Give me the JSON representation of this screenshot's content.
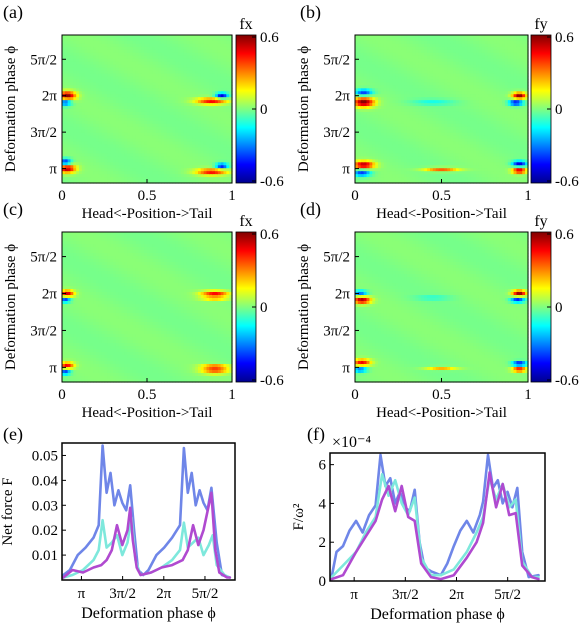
{
  "chart_data": [
    {
      "panel": "(a)",
      "type": "heatmap",
      "xlabel": "Head<-Position->Tail",
      "ylabel": "Deformation phase ϕ",
      "colorbar_label": "fx",
      "colorbar_ticks": [
        "0.6",
        "0",
        "-0.6"
      ],
      "clim": [
        -0.6,
        0.6
      ],
      "xticks": [
        "0",
        "0.5",
        "1"
      ],
      "yticks": [
        "π",
        "3π/2",
        "2π",
        "5π/2"
      ],
      "xlim": [
        0,
        1
      ],
      "ylim": [
        2.52,
        8.9
      ],
      "blobs": [
        {
          "x": 0.03,
          "y": 6.28,
          "v": 0.6,
          "sx": 0.05,
          "sy": 0.18
        },
        {
          "x": 0.02,
          "y": 6.0,
          "v": -0.4,
          "sx": 0.035,
          "sy": 0.15
        },
        {
          "x": 0.03,
          "y": 3.14,
          "v": 0.55,
          "sx": 0.05,
          "sy": 0.18
        },
        {
          "x": 0.02,
          "y": 3.42,
          "v": -0.45,
          "sx": 0.035,
          "sy": 0.15
        },
        {
          "x": 0.94,
          "y": 6.28,
          "v": -0.5,
          "sx": 0.035,
          "sy": 0.12
        },
        {
          "x": 0.88,
          "y": 6.05,
          "v": 0.45,
          "sx": 0.09,
          "sy": 0.13
        },
        {
          "x": 0.94,
          "y": 3.25,
          "v": -0.45,
          "sx": 0.035,
          "sy": 0.12
        },
        {
          "x": 0.88,
          "y": 3.0,
          "v": 0.45,
          "sx": 0.09,
          "sy": 0.13
        }
      ]
    },
    {
      "panel": "(b)",
      "type": "heatmap",
      "xlabel": "Head<-Position->Tail",
      "ylabel": "Deformation phase ϕ",
      "colorbar_label": "fy",
      "colorbar_ticks": [
        "0.6",
        "0",
        "-0.6"
      ],
      "clim": [
        -0.6,
        0.6
      ],
      "xticks": [
        "0",
        "0.5",
        "1"
      ],
      "yticks": [
        "π",
        "3π/2",
        "2π",
        "5π/2"
      ],
      "xlim": [
        0,
        1
      ],
      "ylim": [
        2.52,
        8.9
      ],
      "blobs": [
        {
          "x": 0.05,
          "y": 6.0,
          "v": 0.6,
          "sx": 0.06,
          "sy": 0.2
        },
        {
          "x": 0.05,
          "y": 6.42,
          "v": -0.4,
          "sx": 0.05,
          "sy": 0.14
        },
        {
          "x": 0.05,
          "y": 3.3,
          "v": 0.55,
          "sx": 0.06,
          "sy": 0.16
        },
        {
          "x": 0.04,
          "y": 2.95,
          "v": -0.4,
          "sx": 0.05,
          "sy": 0.14
        },
        {
          "x": 0.5,
          "y": 3.1,
          "v": 0.35,
          "sx": 0.1,
          "sy": 0.08
        },
        {
          "x": 0.45,
          "y": 6.0,
          "v": -0.12,
          "sx": 0.12,
          "sy": 0.12
        },
        {
          "x": 0.95,
          "y": 6.28,
          "v": 0.6,
          "sx": 0.04,
          "sy": 0.14
        },
        {
          "x": 0.93,
          "y": 5.98,
          "v": -0.5,
          "sx": 0.04,
          "sy": 0.12
        },
        {
          "x": 0.95,
          "y": 3.35,
          "v": -0.5,
          "sx": 0.04,
          "sy": 0.12
        },
        {
          "x": 0.95,
          "y": 3.05,
          "v": 0.55,
          "sx": 0.04,
          "sy": 0.12
        }
      ]
    },
    {
      "panel": "(c)",
      "type": "heatmap",
      "xlabel": "Head<-Position->Tail",
      "ylabel": "Deformation phase ϕ",
      "colorbar_label": "fx",
      "colorbar_ticks": [
        "0.6",
        "0",
        "-0.6"
      ],
      "clim": [
        -0.6,
        0.6
      ],
      "xticks": [
        "0",
        "0.5",
        "1"
      ],
      "yticks": [
        "π",
        "3π/2",
        "2π",
        "5π/2"
      ],
      "xlim": [
        0,
        1
      ],
      "ylim": [
        2.52,
        8.9
      ],
      "blobs": [
        {
          "x": 0.03,
          "y": 6.28,
          "v": 0.5,
          "sx": 0.04,
          "sy": 0.14
        },
        {
          "x": 0.02,
          "y": 6.02,
          "v": -0.4,
          "sx": 0.03,
          "sy": 0.12
        },
        {
          "x": 0.03,
          "y": 3.22,
          "v": 0.45,
          "sx": 0.04,
          "sy": 0.14
        },
        {
          "x": 0.02,
          "y": 2.95,
          "v": -0.4,
          "sx": 0.03,
          "sy": 0.12
        },
        {
          "x": 0.9,
          "y": 6.3,
          "v": 0.45,
          "sx": 0.08,
          "sy": 0.1
        },
        {
          "x": 0.9,
          "y": 6.1,
          "v": 0.3,
          "sx": 0.08,
          "sy": 0.1
        },
        {
          "x": 0.9,
          "y": 3.15,
          "v": 0.45,
          "sx": 0.08,
          "sy": 0.1
        },
        {
          "x": 0.9,
          "y": 2.95,
          "v": 0.3,
          "sx": 0.08,
          "sy": 0.1
        }
      ]
    },
    {
      "panel": "(d)",
      "type": "heatmap",
      "xlabel": "Head<-Position->Tail",
      "ylabel": "Deformation phase ϕ",
      "colorbar_label": "fy",
      "colorbar_ticks": [
        "0.6",
        "0",
        "-0.6"
      ],
      "clim": [
        -0.6,
        0.6
      ],
      "xticks": [
        "0",
        "0.5",
        "1"
      ],
      "yticks": [
        "π",
        "3π/2",
        "2π",
        "5π/2"
      ],
      "xlim": [
        0,
        1
      ],
      "ylim": [
        2.52,
        8.9
      ],
      "blobs": [
        {
          "x": 0.04,
          "y": 6.0,
          "v": 0.55,
          "sx": 0.05,
          "sy": 0.15
        },
        {
          "x": 0.03,
          "y": 6.3,
          "v": -0.35,
          "sx": 0.04,
          "sy": 0.12
        },
        {
          "x": 0.04,
          "y": 3.35,
          "v": 0.45,
          "sx": 0.05,
          "sy": 0.14
        },
        {
          "x": 0.03,
          "y": 3.05,
          "v": -0.35,
          "sx": 0.04,
          "sy": 0.12
        },
        {
          "x": 0.5,
          "y": 3.1,
          "v": 0.25,
          "sx": 0.09,
          "sy": 0.07
        },
        {
          "x": 0.45,
          "y": 6.1,
          "v": -0.1,
          "sx": 0.1,
          "sy": 0.1
        },
        {
          "x": 0.95,
          "y": 6.3,
          "v": 0.6,
          "sx": 0.04,
          "sy": 0.12
        },
        {
          "x": 0.94,
          "y": 6.0,
          "v": -0.45,
          "sx": 0.04,
          "sy": 0.1
        },
        {
          "x": 0.95,
          "y": 3.3,
          "v": -0.5,
          "sx": 0.04,
          "sy": 0.1
        },
        {
          "x": 0.95,
          "y": 3.05,
          "v": 0.5,
          "sx": 0.04,
          "sy": 0.1
        }
      ]
    },
    {
      "panel": "(e)",
      "type": "line",
      "xlabel": "Deformation phase ϕ",
      "ylabel": "Net force F",
      "xlim": [
        2.4,
        9.0
      ],
      "ylim": [
        0,
        0.055
      ],
      "xticks": [
        {
          "v": 3.1416,
          "label": "π"
        },
        {
          "v": 4.7124,
          "label": "3π/2"
        },
        {
          "v": 6.2832,
          "label": "2π"
        },
        {
          "v": 7.854,
          "label": "5π/2"
        }
      ],
      "yticks": [
        "0.01",
        "0.02",
        "0.03",
        "0.04",
        "0.05"
      ],
      "series": [
        {
          "color": "#6f86e8",
          "x": [
            2.45,
            2.7,
            3.0,
            3.3,
            3.6,
            3.8,
            3.95,
            4.1,
            4.25,
            4.4,
            4.55,
            4.7,
            4.85,
            5.0,
            5.15,
            5.3,
            5.5,
            5.7,
            6.0,
            6.3,
            6.6,
            6.9,
            7.05,
            7.2,
            7.35,
            7.5,
            7.65,
            7.8,
            7.95,
            8.1,
            8.3,
            8.5,
            8.8
          ],
          "y": [
            0.002,
            0.004,
            0.01,
            0.013,
            0.017,
            0.022,
            0.054,
            0.035,
            0.043,
            0.03,
            0.036,
            0.031,
            0.028,
            0.038,
            0.02,
            0.004,
            0.002,
            0.004,
            0.01,
            0.013,
            0.017,
            0.022,
            0.053,
            0.035,
            0.043,
            0.03,
            0.036,
            0.031,
            0.028,
            0.037,
            0.015,
            0.002,
            0.001
          ]
        },
        {
          "color": "#7ee8dc",
          "x": [
            2.45,
            2.8,
            3.2,
            3.6,
            3.8,
            3.95,
            4.1,
            4.3,
            4.5,
            4.7,
            4.9,
            5.05,
            5.2,
            5.4,
            5.8,
            6.2,
            6.6,
            6.9,
            7.05,
            7.2,
            7.4,
            7.6,
            7.8,
            8.0,
            8.15,
            8.3,
            8.6,
            8.8
          ],
          "y": [
            0.001,
            0.002,
            0.004,
            0.008,
            0.012,
            0.024,
            0.013,
            0.015,
            0.018,
            0.01,
            0.015,
            0.025,
            0.008,
            0.002,
            0.003,
            0.005,
            0.008,
            0.012,
            0.023,
            0.013,
            0.015,
            0.017,
            0.01,
            0.014,
            0.018,
            0.006,
            0.002,
            0.001
          ]
        },
        {
          "color": "#b04ad0",
          "x": [
            2.45,
            2.8,
            3.2,
            3.6,
            3.9,
            4.1,
            4.3,
            4.5,
            4.7,
            4.9,
            5.0,
            5.1,
            5.25,
            5.4,
            5.8,
            6.2,
            6.6,
            7.0,
            7.2,
            7.4,
            7.6,
            7.8,
            8.0,
            8.1,
            8.25,
            8.4,
            8.7,
            8.8
          ],
          "y": [
            0.001,
            0.004,
            0.003,
            0.005,
            0.006,
            0.008,
            0.012,
            0.022,
            0.014,
            0.02,
            0.029,
            0.016,
            0.005,
            0.002,
            0.003,
            0.005,
            0.006,
            0.008,
            0.012,
            0.022,
            0.014,
            0.02,
            0.03,
            0.035,
            0.012,
            0.003,
            0.001,
            0.001
          ]
        }
      ]
    },
    {
      "panel": "(f)",
      "type": "line",
      "xlabel": "Deformation phase ϕ",
      "ylabel": "F/ω²",
      "y_exponent": "×10⁻⁴",
      "xlim": [
        2.4,
        9.0
      ],
      "ylim": [
        0,
        6.6
      ],
      "xticks": [
        {
          "v": 3.1416,
          "label": "π"
        },
        {
          "v": 4.7124,
          "label": "3π/2"
        },
        {
          "v": 6.2832,
          "label": "2π"
        },
        {
          "v": 7.854,
          "label": "5π/2"
        }
      ],
      "yticks": [
        "0",
        "2",
        "4",
        "6"
      ],
      "series": [
        {
          "color": "#6f86e8",
          "x": [
            2.45,
            2.6,
            2.8,
            3.0,
            3.2,
            3.4,
            3.6,
            3.8,
            3.95,
            4.1,
            4.25,
            4.4,
            4.55,
            4.7,
            4.85,
            5.0,
            5.15,
            5.3,
            5.5,
            5.8,
            6.0,
            6.2,
            6.4,
            6.6,
            6.8,
            7.0,
            7.1,
            7.25,
            7.4,
            7.55,
            7.7,
            7.85,
            8.0,
            8.15,
            8.3,
            8.5,
            8.8
          ],
          "y": [
            0.2,
            1.5,
            1.8,
            2.6,
            3.1,
            2.5,
            3.4,
            3.9,
            6.5,
            4.9,
            5.3,
            4.0,
            4.6,
            3.8,
            3.6,
            4.7,
            2.0,
            0.7,
            0.5,
            0.3,
            0.9,
            1.8,
            2.6,
            3.1,
            2.5,
            3.4,
            4.1,
            6.5,
            4.8,
            5.2,
            4.0,
            4.6,
            3.8,
            4.8,
            1.5,
            0.2,
            0.3
          ]
        },
        {
          "color": "#7ee8dc",
          "x": [
            2.45,
            2.8,
            3.2,
            3.5,
            3.8,
            4.0,
            4.2,
            4.4,
            4.6,
            4.8,
            5.0,
            5.2,
            5.5,
            5.8,
            6.2,
            6.6,
            6.9,
            7.1,
            7.3,
            7.5,
            7.7,
            7.9,
            8.1,
            8.3,
            8.6,
            8.8
          ],
          "y": [
            0.2,
            0.8,
            1.5,
            2.5,
            3.3,
            5.5,
            4.4,
            5.2,
            4.0,
            3.4,
            4.3,
            1.2,
            0.3,
            0.3,
            0.6,
            1.5,
            2.5,
            3.3,
            5.3,
            4.2,
            5.0,
            3.8,
            4.2,
            1.0,
            0.2,
            0.2
          ]
        },
        {
          "color": "#b04ad0",
          "x": [
            2.45,
            2.8,
            3.2,
            3.5,
            3.8,
            4.0,
            4.2,
            4.4,
            4.6,
            4.8,
            5.0,
            5.2,
            5.5,
            5.8,
            6.2,
            6.6,
            6.9,
            7.1,
            7.3,
            7.5,
            7.7,
            7.9,
            8.1,
            8.3,
            8.6,
            8.8
          ],
          "y": [
            0.1,
            0.3,
            1.5,
            2.3,
            3.1,
            4.2,
            4.9,
            3.6,
            4.9,
            3.3,
            3.1,
            0.9,
            0.2,
            0.1,
            0.3,
            1.2,
            2.0,
            3.0,
            5.6,
            3.8,
            5.0,
            3.4,
            3.5,
            0.8,
            0.2,
            0.1
          ]
        }
      ]
    }
  ]
}
